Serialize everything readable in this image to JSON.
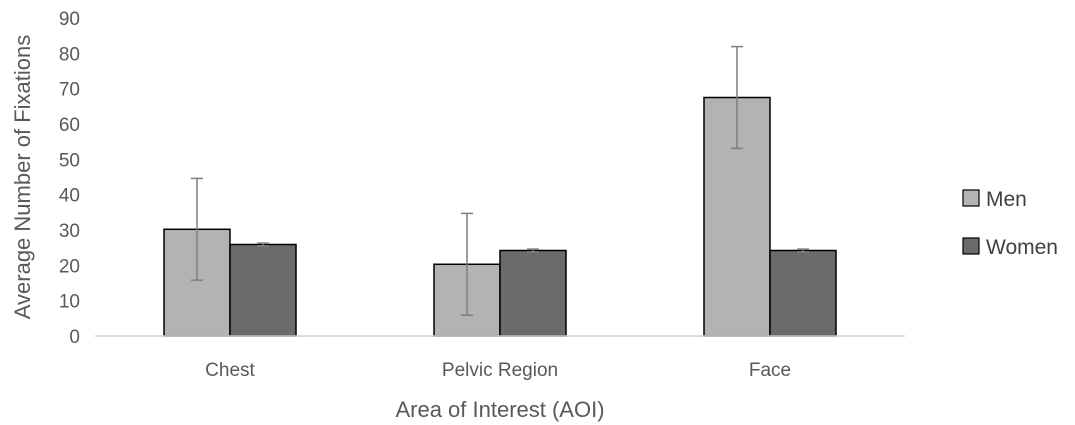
{
  "chart_data": {
    "type": "bar",
    "title": "",
    "xlabel": "Area of Interest (AOI)",
    "ylabel": "Average Number of Fixations",
    "categories": [
      "Chest",
      "Pelvic Region",
      "Face"
    ],
    "ylim": [
      0,
      90
    ],
    "yticks": [
      "0",
      "10",
      "20",
      "30",
      "40",
      "50",
      "60",
      "70",
      "80",
      "90"
    ],
    "grid": false,
    "legend_position": "right",
    "series": [
      {
        "name": "Men",
        "color": "#b3b3b3",
        "values": [
          30.2,
          20.3,
          67.5
        ],
        "error": [
          14.4,
          14.4,
          14.4
        ]
      },
      {
        "name": "Women",
        "color": "#6b6b6e",
        "values": [
          25.9,
          24.2,
          24.2
        ],
        "error": [
          0.4,
          0.4,
          0.4
        ]
      }
    ]
  }
}
